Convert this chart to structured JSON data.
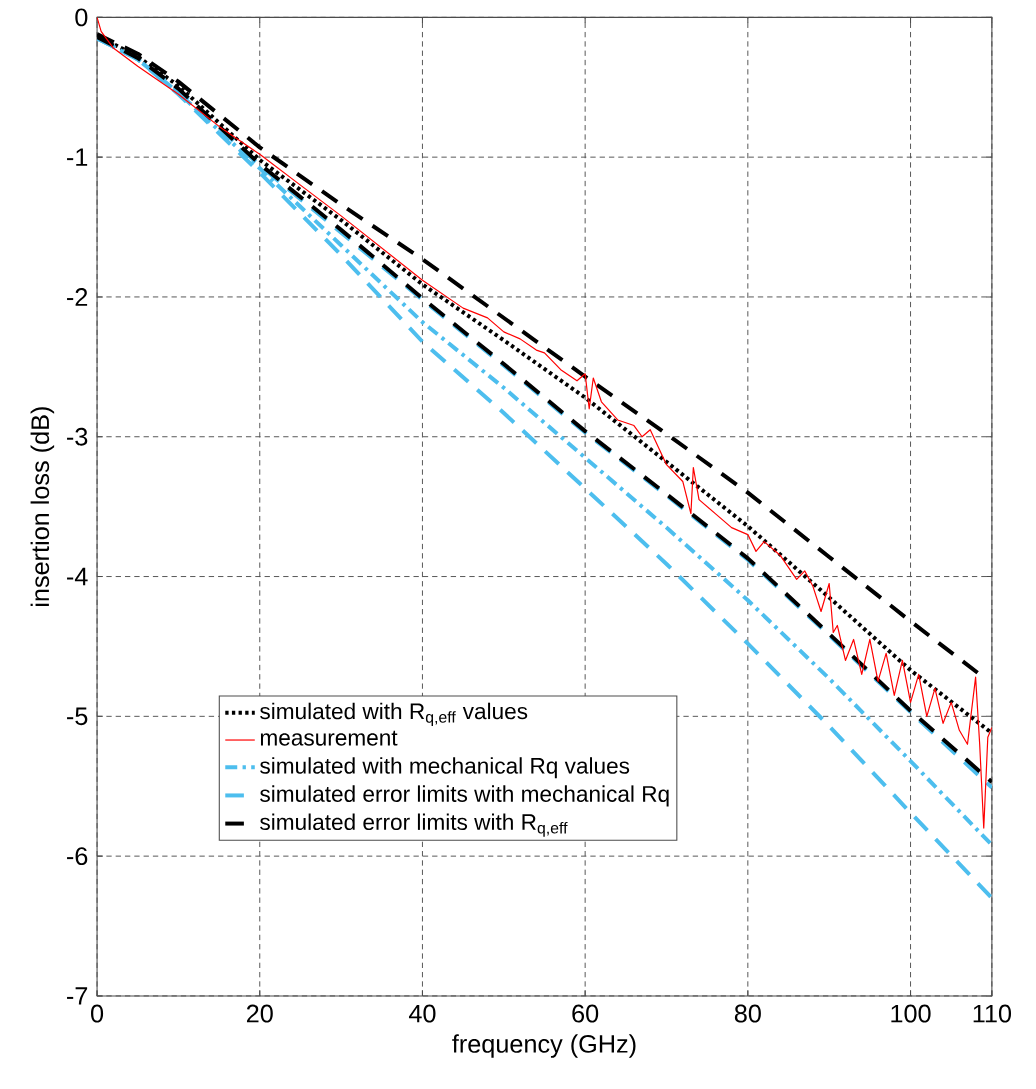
{
  "chart_data": {
    "type": "line",
    "xlabel": "frequency (GHz)",
    "ylabel": "insertion loss (dB)",
    "x": [
      0,
      5,
      10,
      20,
      30,
      40,
      50,
      60,
      70,
      80,
      90,
      100,
      110
    ],
    "xlim": [
      0,
      110
    ],
    "xticks": [
      0,
      20,
      40,
      60,
      80,
      100,
      110
    ],
    "ylim": [
      -7,
      0
    ],
    "yticks": [
      -7,
      -6,
      -5,
      -4,
      -3,
      -2,
      -1,
      0
    ],
    "grid": true,
    "legend": "bottom left",
    "series": [
      {
        "name": "simulated with R$_{q,eff}$ values",
        "color": "#000000",
        "line_style": "dotted",
        "values": [
          -0.13,
          -0.28,
          -0.49,
          -1.02,
          -1.45,
          -1.91,
          -2.31,
          -2.72,
          -3.18,
          -3.64,
          -4.15,
          -4.67,
          -5.12
        ]
      },
      {
        "name": "measurement",
        "color": "#ff0000",
        "line_style": "solid",
        "x": [
          0,
          0.5,
          2,
          5,
          10,
          15,
          20,
          25,
          30,
          35,
          40,
          45,
          48,
          50,
          52,
          54,
          55,
          57,
          59,
          60,
          60.5,
          61,
          62,
          64,
          66,
          67,
          68,
          70,
          72,
          73,
          73.3,
          74,
          76,
          78,
          80,
          81,
          82,
          84,
          86,
          87,
          88,
          89,
          90,
          90.5,
          91,
          92,
          93,
          94,
          95,
          96,
          97,
          98,
          99,
          100,
          101,
          102,
          103,
          104,
          105,
          106,
          107,
          108,
          108.5,
          109,
          109.5,
          110
        ],
        "values": [
          0,
          -0.1,
          -0.22,
          -0.35,
          -0.55,
          -0.78,
          -0.98,
          -1.2,
          -1.42,
          -1.65,
          -1.88,
          -2.08,
          -2.15,
          -2.25,
          -2.3,
          -2.38,
          -2.4,
          -2.52,
          -2.6,
          -2.55,
          -2.8,
          -2.58,
          -2.75,
          -2.88,
          -2.92,
          -3.0,
          -2.95,
          -3.2,
          -3.32,
          -3.55,
          -3.22,
          -3.45,
          -3.55,
          -3.65,
          -3.7,
          -3.82,
          -3.75,
          -3.85,
          -4.02,
          -3.96,
          -4.07,
          -4.25,
          -4.05,
          -4.4,
          -4.35,
          -4.6,
          -4.45,
          -4.7,
          -4.45,
          -4.75,
          -4.55,
          -4.85,
          -4.6,
          -4.9,
          -4.7,
          -5.0,
          -4.8,
          -5.05,
          -4.9,
          -5.1,
          -5.2,
          -4.72,
          -5.2,
          -5.8,
          -5.15,
          -5.08
        ]
      },
      {
        "name": "simulated with mechanical Rq values",
        "color": "#4dbeee",
        "line_style": "dashdot",
        "values": [
          -0.15,
          -0.3,
          -0.54,
          -1.08,
          -1.63,
          -2.18,
          -2.65,
          -3.15,
          -3.65,
          -4.17,
          -4.73,
          -5.32,
          -5.92
        ]
      },
      {
        "name": "simulated error limits with mechanical Rq",
        "color": "#4dbeee",
        "line_style": "dashed",
        "values": [
          -0.15,
          -0.3,
          -0.52,
          -1.06,
          -1.54,
          -2.02,
          -2.49,
          -2.97,
          -3.42,
          -3.88,
          -4.42,
          -4.97,
          -5.51
        ]
      },
      {
        "color": "#4dbeee",
        "line_style": "dashed",
        "values": [
          -0.15,
          -0.3,
          -0.55,
          -1.11,
          -1.7,
          -2.32,
          -2.83,
          -3.37,
          -3.91,
          -4.48,
          -5.07,
          -5.69,
          -6.3
        ]
      },
      {
        "name": "simulated error limits with R$_{q,eff}$",
        "color": "#000000",
        "line_style": "dashed",
        "values": [
          -0.14,
          -0.29,
          -0.51,
          -1.05,
          -1.52,
          -2.01,
          -2.48,
          -2.96,
          -3.41,
          -3.87,
          -4.41,
          -4.96,
          -5.47
        ]
      },
      {
        "color": "#000000",
        "line_style": "dashed",
        "x": [
          0,
          5,
          10,
          20,
          30,
          40,
          50,
          60,
          70,
          80,
          90,
          100,
          108.5
        ],
        "values": [
          -0.12,
          -0.26,
          -0.46,
          -0.93,
          -1.34,
          -1.73,
          -2.15,
          -2.57,
          -2.98,
          -3.4,
          -3.86,
          -4.32,
          -4.7
        ]
      }
    ]
  }
}
